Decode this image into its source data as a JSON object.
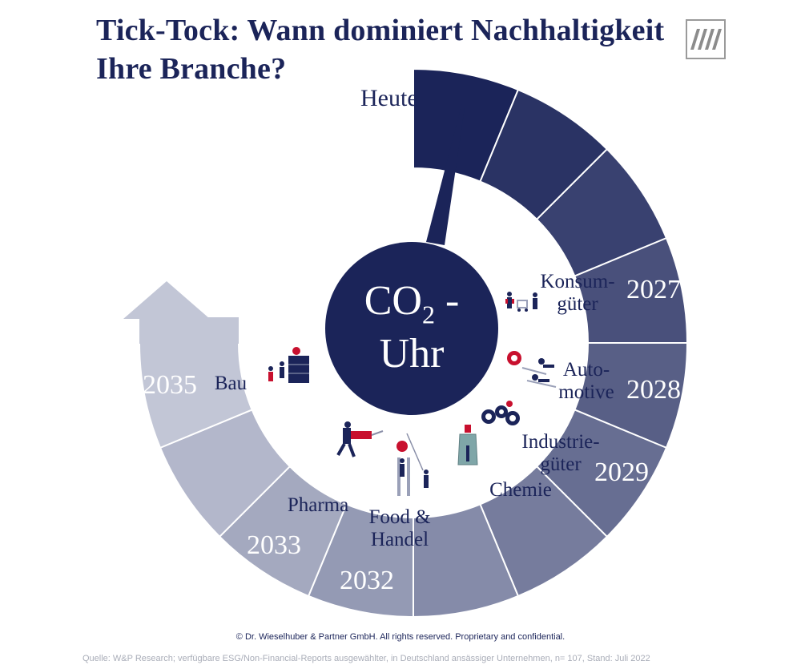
{
  "title": {
    "line1": "Tick-Tock: Wann dominiert Nachhaltigkeit",
    "line2": "Ihre Branche?"
  },
  "center": {
    "line1": "CO",
    "subscript": "2",
    "suffix": " -",
    "line2": "Uhr"
  },
  "pointer_label": "Heute",
  "years": [
    "2027",
    "2028",
    "2029",
    "2032",
    "2033",
    "2035"
  ],
  "sectors": {
    "konsum": [
      "Konsum-",
      "güter"
    ],
    "auto": [
      "Auto-",
      "motive"
    ],
    "industrie": [
      "Industrie-",
      "güter"
    ],
    "chemie": "Chemie",
    "food": [
      "Food &",
      "Handel"
    ],
    "pharma": "Pharma",
    "bau": "Bau"
  },
  "colors": {
    "primary": "#1b2459",
    "ring_start": "#1b2459",
    "ring_end": "#c2c6d6"
  },
  "footer": {
    "copyright": "© Dr. Wieselhuber & Partner GmbH. All rights reserved. Proprietary and confidential.",
    "source": "Quelle: W&P Research; verfügbare ESG/Non-Financial-Reports ausgewählter, in Deutschland ansässiger Unternehmen, n= 107, Stand: Juli 2022"
  }
}
